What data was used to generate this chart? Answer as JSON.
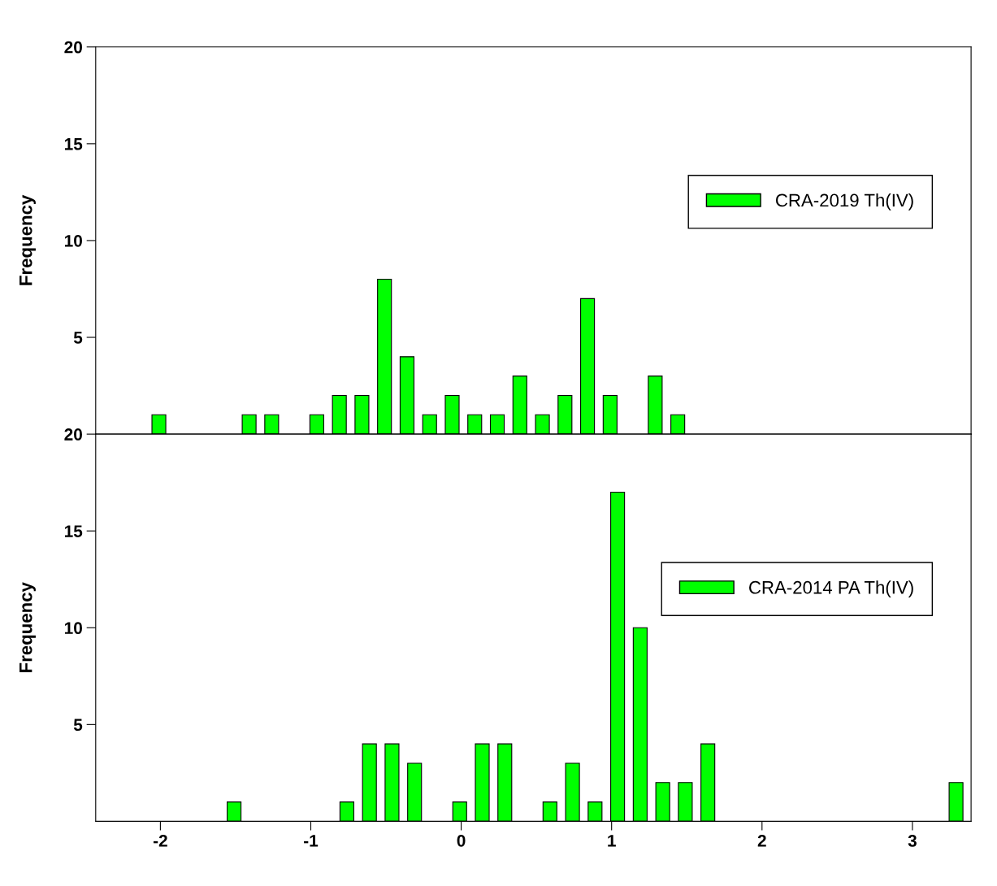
{
  "chart_data": [
    {
      "type": "bar",
      "ylabel": "Frequency",
      "x": [
        -2.01,
        -1.41,
        -1.26,
        -0.96,
        -0.81,
        -0.66,
        -0.51,
        -0.36,
        -0.21,
        -0.06,
        0.09,
        0.24,
        0.39,
        0.54,
        0.69,
        0.84,
        0.99,
        1.29,
        1.44
      ],
      "series": [
        {
          "name": "CRA-2019 Th(IV)",
          "color": "#00ff00",
          "values": [
            1,
            1,
            1,
            1,
            2,
            2,
            8,
            4,
            1,
            2,
            1,
            1,
            3,
            1,
            2,
            7,
            2,
            3,
            1
          ]
        }
      ],
      "xlim": [
        -2.43,
        3.39
      ],
      "ylim": [
        0,
        20
      ],
      "yticks": [
        5,
        10,
        15,
        20
      ],
      "tick_labels": "y",
      "legend": "right"
    },
    {
      "type": "bar",
      "ylabel": "Frequency",
      "x": [
        -1.51,
        -0.76,
        -0.61,
        -0.46,
        -0.31,
        -0.01,
        0.14,
        0.29,
        0.59,
        0.74,
        0.89,
        1.04,
        1.19,
        1.34,
        1.49,
        1.64,
        3.29
      ],
      "series": [
        {
          "name": "CRA-2014 PA Th(IV)",
          "color": "#00ff00",
          "values": [
            1,
            1,
            4,
            4,
            3,
            1,
            4,
            4,
            1,
            3,
            1,
            17,
            10,
            2,
            2,
            4,
            2
          ]
        }
      ],
      "xlim": [
        -2.43,
        3.39
      ],
      "xticks": [
        -2,
        -1,
        0,
        1,
        2,
        3
      ],
      "ylim": [
        0,
        20
      ],
      "yticks": [
        5,
        10,
        15,
        20
      ],
      "legend": "right"
    }
  ]
}
